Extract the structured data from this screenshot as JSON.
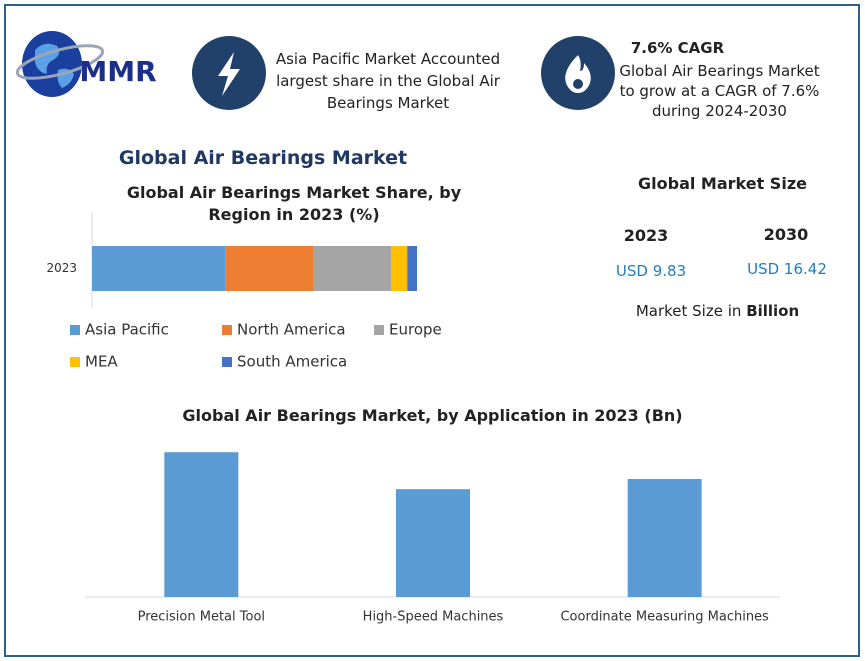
{
  "logo": {
    "text": "MMR"
  },
  "header": {
    "highlight": "Asia Pacific Market Accounted largest share in the Global Air Bearings Market",
    "cagr_title": "7.6% CAGR",
    "cagr_text": "Global Air Bearings Market to grow at a CAGR of 7.6% during 2024-2030"
  },
  "title": "Global Air Bearings Market",
  "market_size": {
    "title": "Global Market Size",
    "years": [
      "2023",
      "2030"
    ],
    "values": [
      "USD 9.83",
      "USD 16.42"
    ],
    "note": "Market Size in",
    "note_unit": "Billion"
  },
  "chart_data": [
    {
      "type": "stacked_bar",
      "title": "Global Air Bearings Market Share, by Region in 2023 (%)",
      "categories": [
        "2023"
      ],
      "series": [
        {
          "name": "Asia Pacific",
          "color": "#5b9bd5",
          "values": [
            41
          ]
        },
        {
          "name": "North America",
          "color": "#ed7d31",
          "values": [
            27
          ]
        },
        {
          "name": "Europe",
          "color": "#a5a5a5",
          "values": [
            24
          ]
        },
        {
          "name": "MEA",
          "color": "#ffc000",
          "values": [
            5
          ]
        },
        {
          "name": "South America",
          "color": "#4472c4",
          "values": [
            3
          ]
        }
      ]
    },
    {
      "type": "bar",
      "title": "Global Air Bearings Market, by Application in 2023 (Bn)",
      "categories": [
        "Precision Metal Tool",
        "High-Speed Machines",
        "Coordinate Measuring Machines"
      ],
      "values": [
        3.84,
        2.86,
        3.13
      ],
      "color": "#5b9bd5"
    }
  ]
}
